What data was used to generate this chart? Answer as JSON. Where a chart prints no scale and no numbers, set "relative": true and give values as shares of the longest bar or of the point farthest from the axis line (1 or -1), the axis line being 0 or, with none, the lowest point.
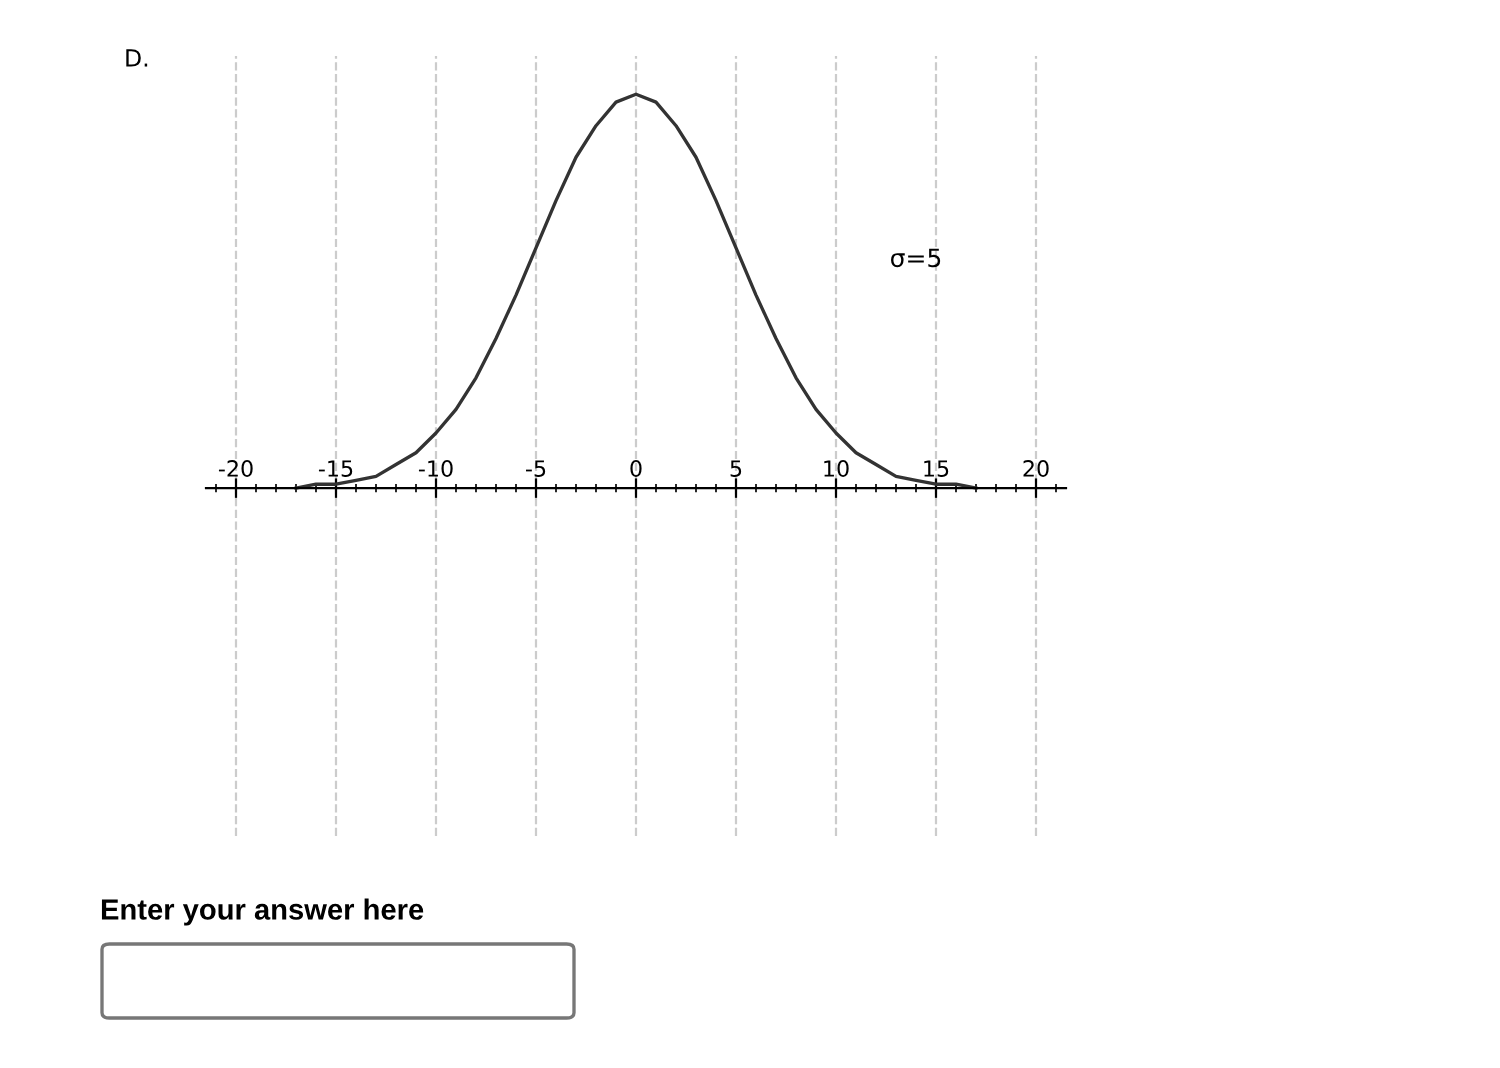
{
  "chart_data": {
    "type": "line",
    "title": "D.",
    "relative": true,
    "x": [
      -17,
      -16,
      -15,
      -14,
      -13,
      -12,
      -11,
      -10,
      -9,
      -8,
      -7,
      -6,
      -5,
      -4,
      -3,
      -2,
      -1,
      0,
      1,
      2,
      3,
      4,
      5,
      6,
      7,
      8,
      9,
      10,
      11,
      12,
      13,
      14,
      15,
      16,
      17
    ],
    "series": [
      {
        "color": "#333333",
        "values": [
          0.0,
          0.01,
          0.01,
          0.02,
          0.03,
          0.06,
          0.09,
          0.14,
          0.2,
          0.28,
          0.38,
          0.49,
          0.61,
          0.73,
          0.84,
          0.92,
          0.98,
          1,
          0.98,
          0.92,
          0.84,
          0.73,
          0.61,
          0.49,
          0.38,
          0.28,
          0.2,
          0.14,
          0.09,
          0.06,
          0.03,
          0.02,
          0.01,
          0.01,
          0.0
        ]
      }
    ],
    "xlim": [
      -21.5,
      21.5
    ],
    "xticks": [
      -20,
      -15,
      -10,
      -5,
      0,
      5,
      10,
      15,
      20
    ],
    "grid": "x",
    "line_style": "solid",
    "marker": "none",
    "legend": false,
    "tick_labels": "x",
    "annotations": [
      "σ=5",
      "Enter your answer here"
    ]
  }
}
